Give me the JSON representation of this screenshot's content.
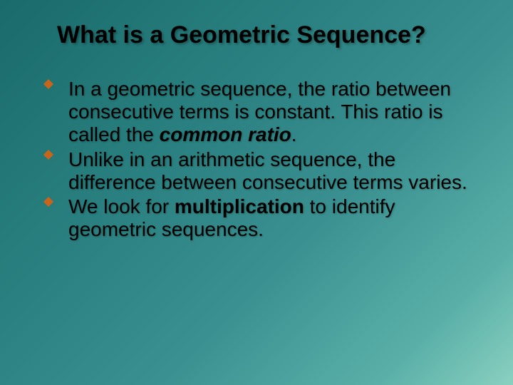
{
  "slide": {
    "background_gradient": [
      "#1a6b6b",
      "#2a8080",
      "#3a9090",
      "#5ab0a8",
      "#8ad0c0"
    ],
    "title": {
      "text": "What is a Geometric Sequence?",
      "fontsize": 34,
      "color": "#000000",
      "font_family": "Arial"
    },
    "bullet_marker": {
      "shape": "diamond",
      "color": "#c8651a",
      "size": 14
    },
    "body_text": {
      "fontsize": 28,
      "color": "#000000",
      "font_family": "Verdana",
      "line_height": 1.15
    },
    "bullets": [
      {
        "runs": [
          {
            "text": "In a geometric sequence, the ratio between consecutive terms is constant. This ratio is called the ",
            "style": "plain"
          },
          {
            "text": "common ratio",
            "style": "bold-italic"
          },
          {
            "text": ".",
            "style": "plain"
          }
        ]
      },
      {
        "runs": [
          {
            "text": "Unlike in an arithmetic sequence, the difference between consecutive terms varies.",
            "style": "plain"
          }
        ]
      },
      {
        "runs": [
          {
            "text": "We look for ",
            "style": "plain"
          },
          {
            "text": "multiplication",
            "style": "bold"
          },
          {
            "text": " to identify geometric sequences.",
            "style": "plain"
          }
        ]
      }
    ]
  }
}
